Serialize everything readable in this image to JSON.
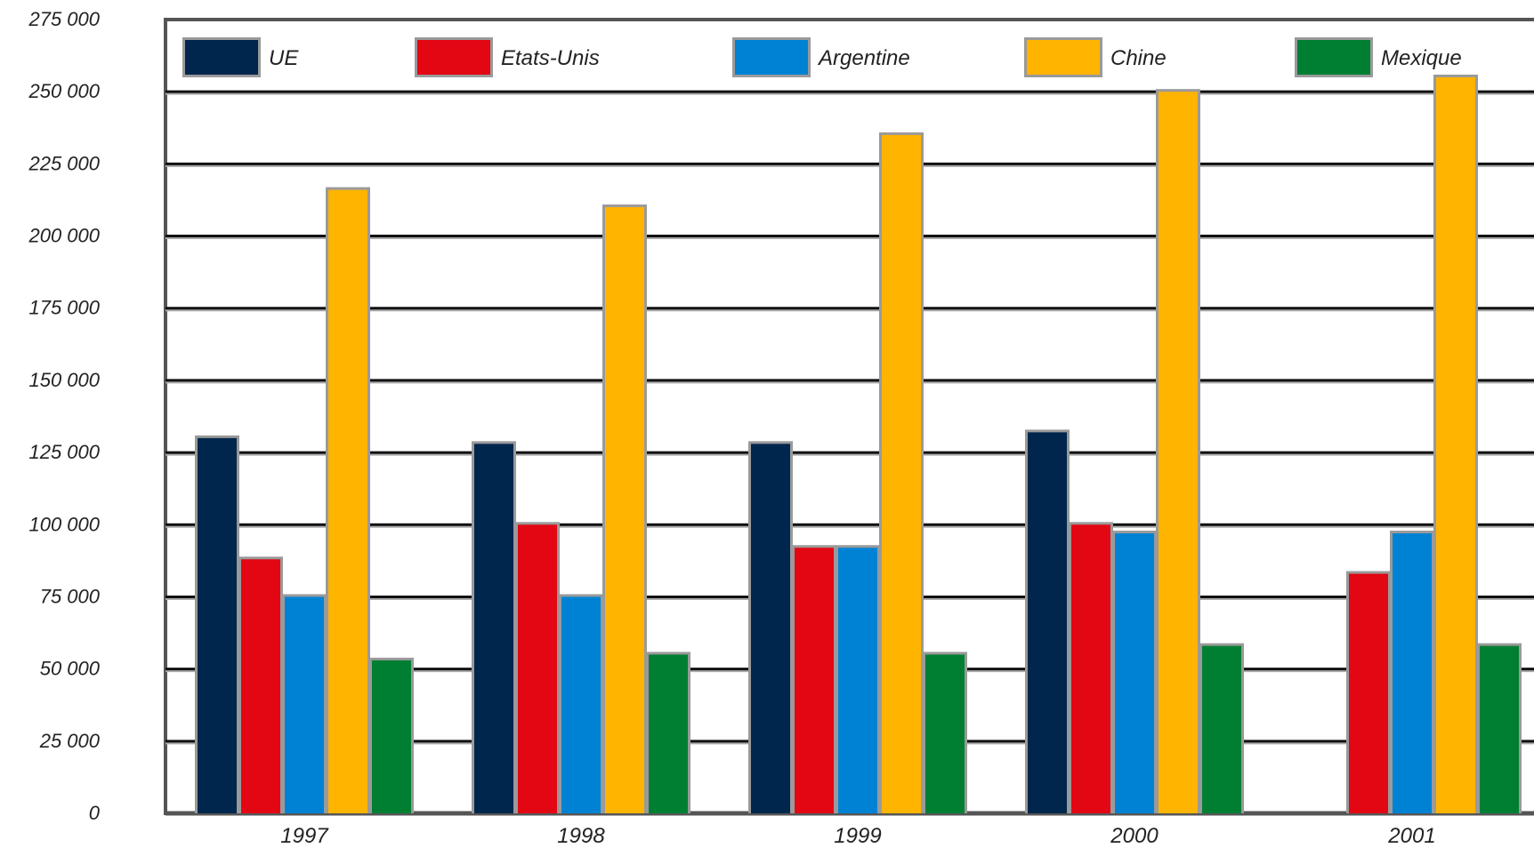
{
  "chart_data": {
    "type": "bar",
    "title": "",
    "xlabel": "",
    "ylabel": "",
    "ylim": [
      0,
      275000
    ],
    "yticks": [
      0,
      25000,
      50000,
      75000,
      100000,
      125000,
      150000,
      175000,
      200000,
      225000,
      250000,
      275000
    ],
    "ytick_labels": [
      "0",
      "25 000",
      "50 000",
      "75 000",
      "100 000",
      "125 000",
      "150 000",
      "175 000",
      "200 000",
      "225 000",
      "250 000",
      "275 000"
    ],
    "grid": true,
    "legend_position": "top",
    "categories": [
      "1997",
      "1998",
      "1999",
      "2000",
      "2001"
    ],
    "series": [
      {
        "name": "UE",
        "color": "#00264d",
        "values": [
          130000,
          128000,
          128000,
          132000,
          null
        ]
      },
      {
        "name": "Etats-Unis",
        "color": "#e30613",
        "values": [
          88000,
          100000,
          92000,
          100000,
          83000
        ]
      },
      {
        "name": "Argentine",
        "color": "#0082d4",
        "values": [
          75000,
          75000,
          92000,
          97000,
          97000
        ]
      },
      {
        "name": "Chine",
        "color": "#ffb400",
        "values": [
          216000,
          210000,
          235000,
          250000,
          255000
        ]
      },
      {
        "name": "Mexique",
        "color": "#007f33",
        "values": [
          53000,
          55000,
          55000,
          58000,
          58000
        ]
      }
    ]
  }
}
